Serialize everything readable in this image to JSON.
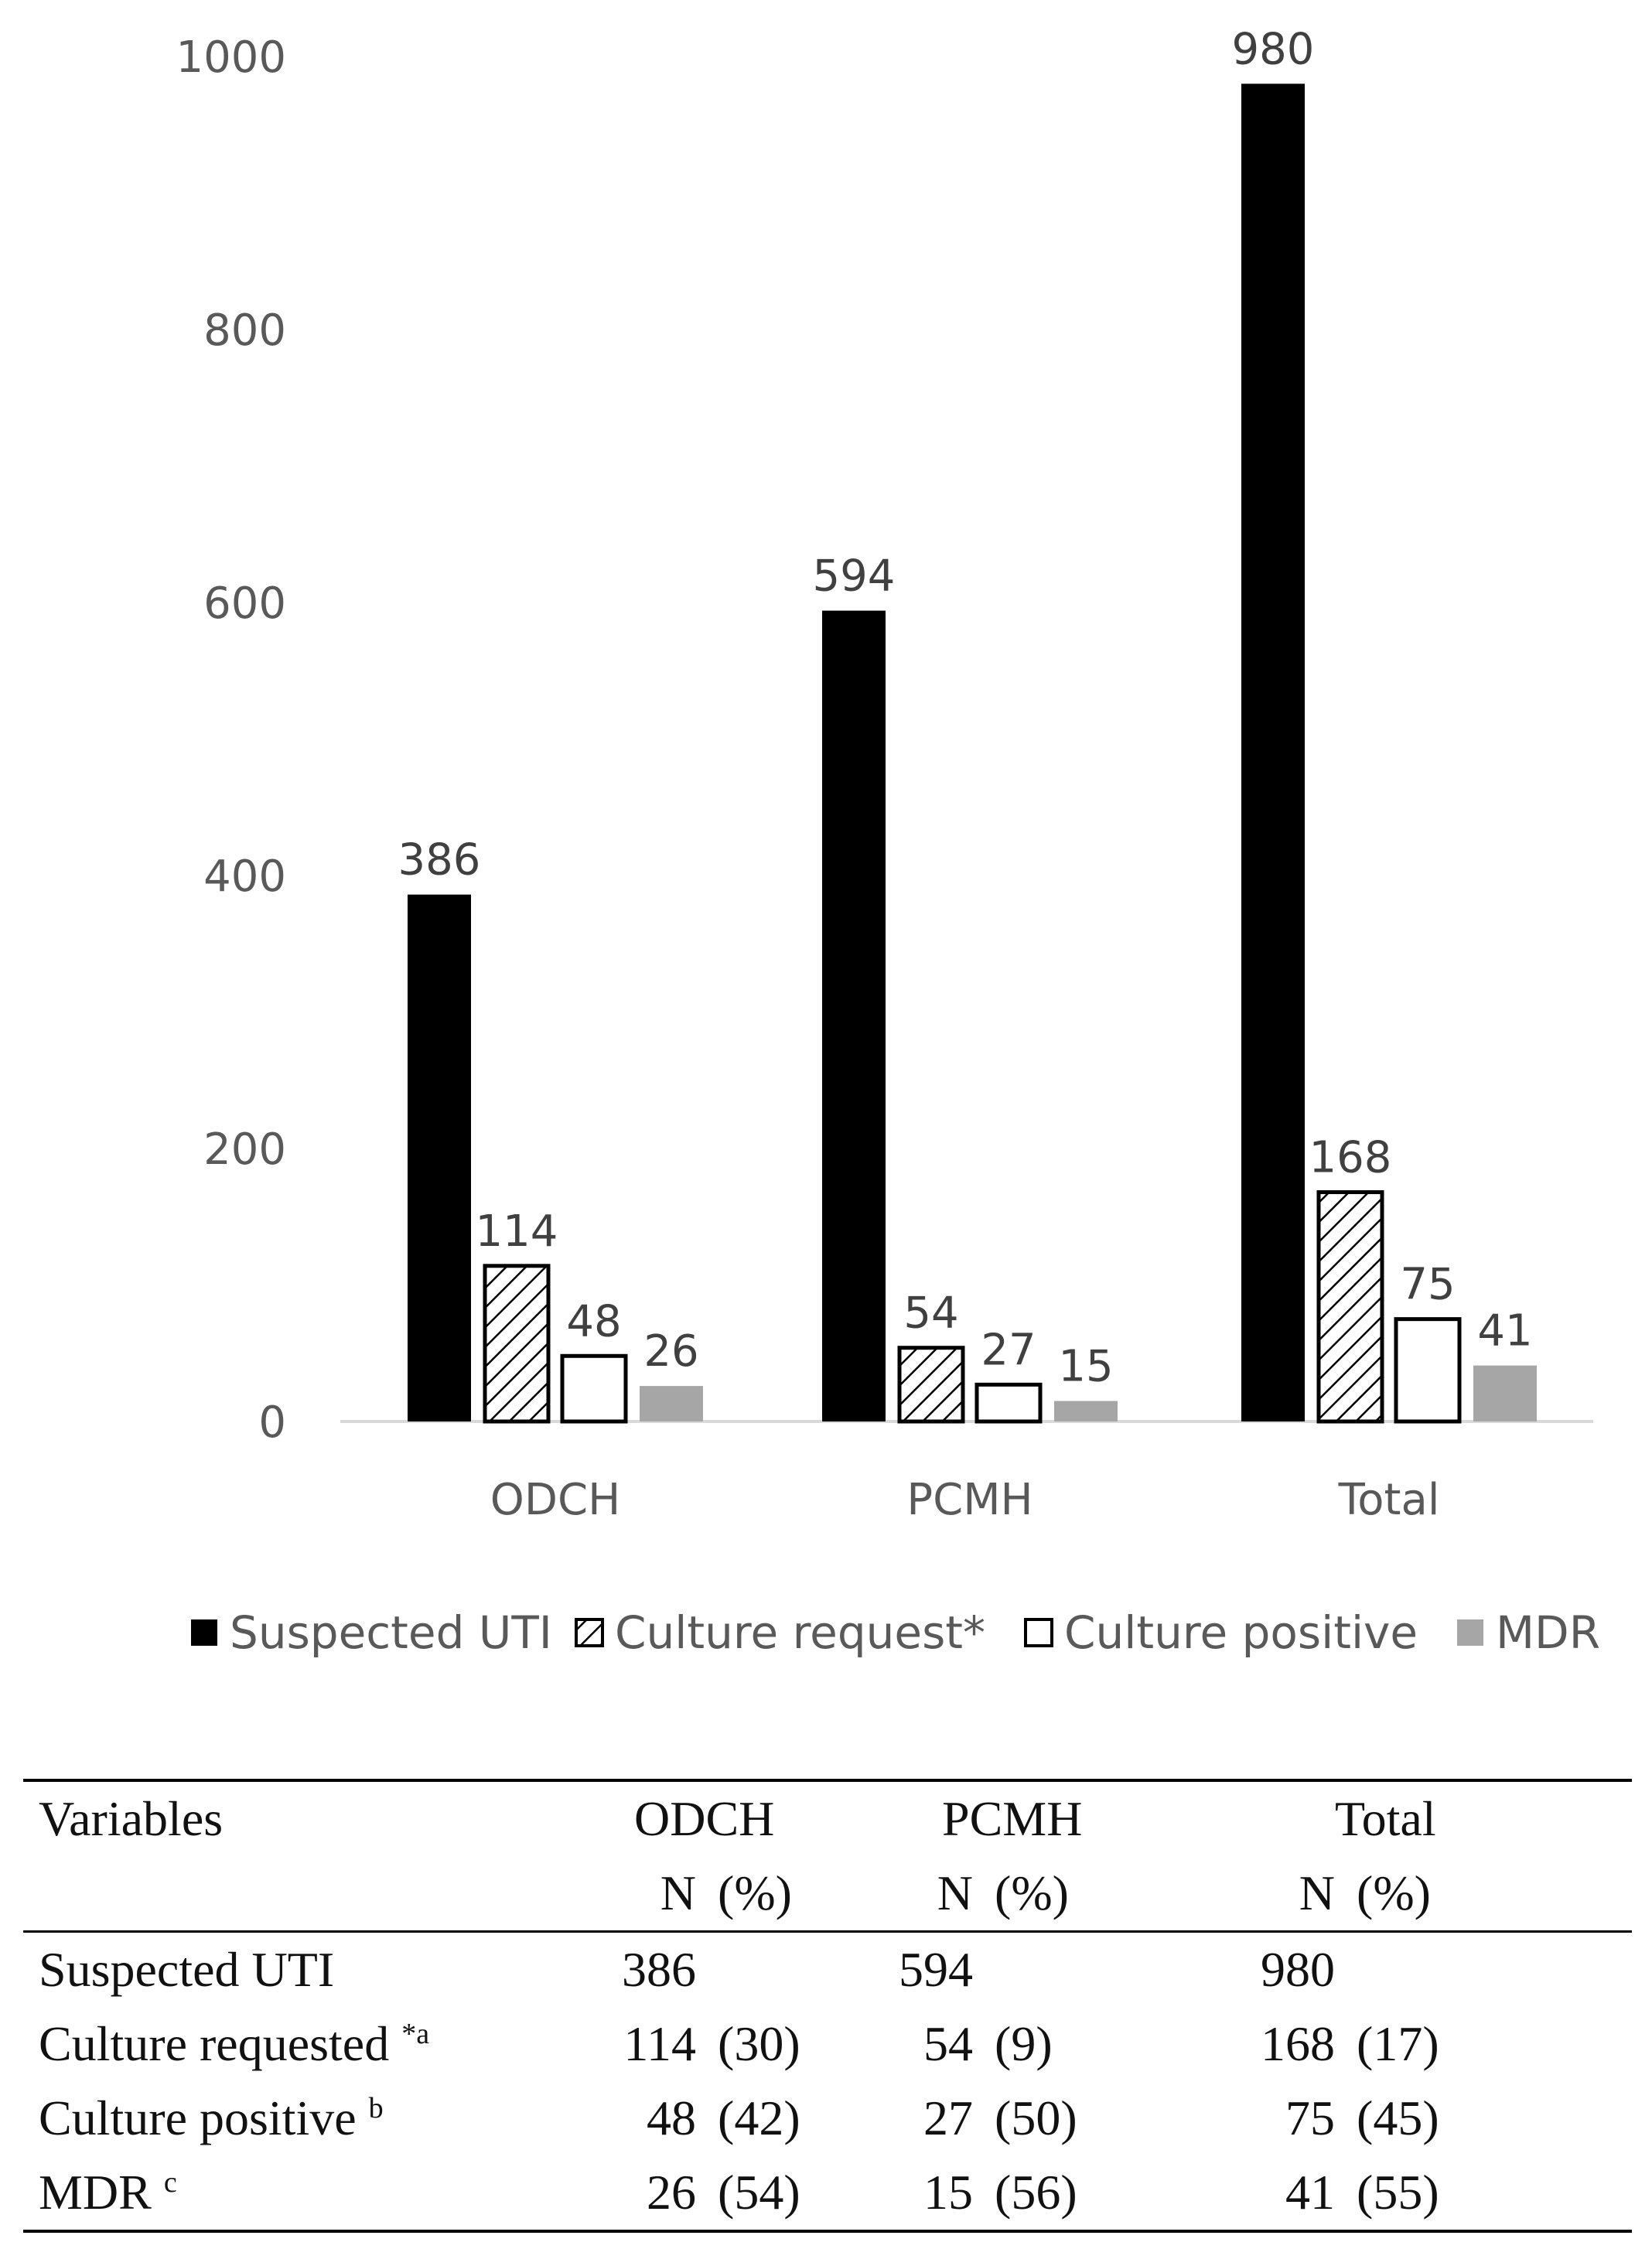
{
  "chart_data": {
    "type": "bar",
    "categories": [
      "ODCH",
      "PCMH",
      "Total"
    ],
    "series": [
      {
        "name": "Suspected UTI",
        "values": [
          386,
          594,
          980
        ],
        "style": "solid",
        "color": "#000000"
      },
      {
        "name": "Culture request*",
        "values": [
          114,
          54,
          168
        ],
        "style": "hatch",
        "color": "#000000"
      },
      {
        "name": "Culture positive",
        "values": [
          48,
          27,
          75
        ],
        "style": "outline",
        "color": "#ffffff"
      },
      {
        "name": "MDR",
        "values": [
          26,
          15,
          41
        ],
        "style": "gray",
        "color": "#a6a6a6"
      }
    ],
    "yticks": [
      0,
      200,
      400,
      600,
      800,
      1000
    ],
    "ylim": [
      0,
      1000
    ],
    "legend": "bottom",
    "title": "",
    "xlabel": "",
    "ylabel": ""
  },
  "table": {
    "headers": {
      "variables": "Variables",
      "groups": [
        "ODCH",
        "PCMH",
        "Total"
      ],
      "n": "N",
      "pct": "(%)"
    },
    "rows": [
      {
        "label": "Suspected UTI",
        "sup": "",
        "cells": [
          [
            "386",
            ""
          ],
          [
            "594",
            ""
          ],
          [
            "980",
            ""
          ]
        ]
      },
      {
        "label": "Culture requested",
        "sup": "*a",
        "cells": [
          [
            "114",
            "(30)"
          ],
          [
            "54",
            "(9)"
          ],
          [
            "168",
            "(17)"
          ]
        ]
      },
      {
        "label": "Culture positive",
        "sup": "b",
        "cells": [
          [
            "48",
            "(42)"
          ],
          [
            "27",
            "(50)"
          ],
          [
            "75",
            "(45)"
          ]
        ]
      },
      {
        "label": "MDR",
        "sup": "c",
        "cells": [
          [
            "26",
            "(54)"
          ],
          [
            "15",
            "(56)"
          ],
          [
            "41",
            "(55)"
          ]
        ]
      }
    ]
  }
}
